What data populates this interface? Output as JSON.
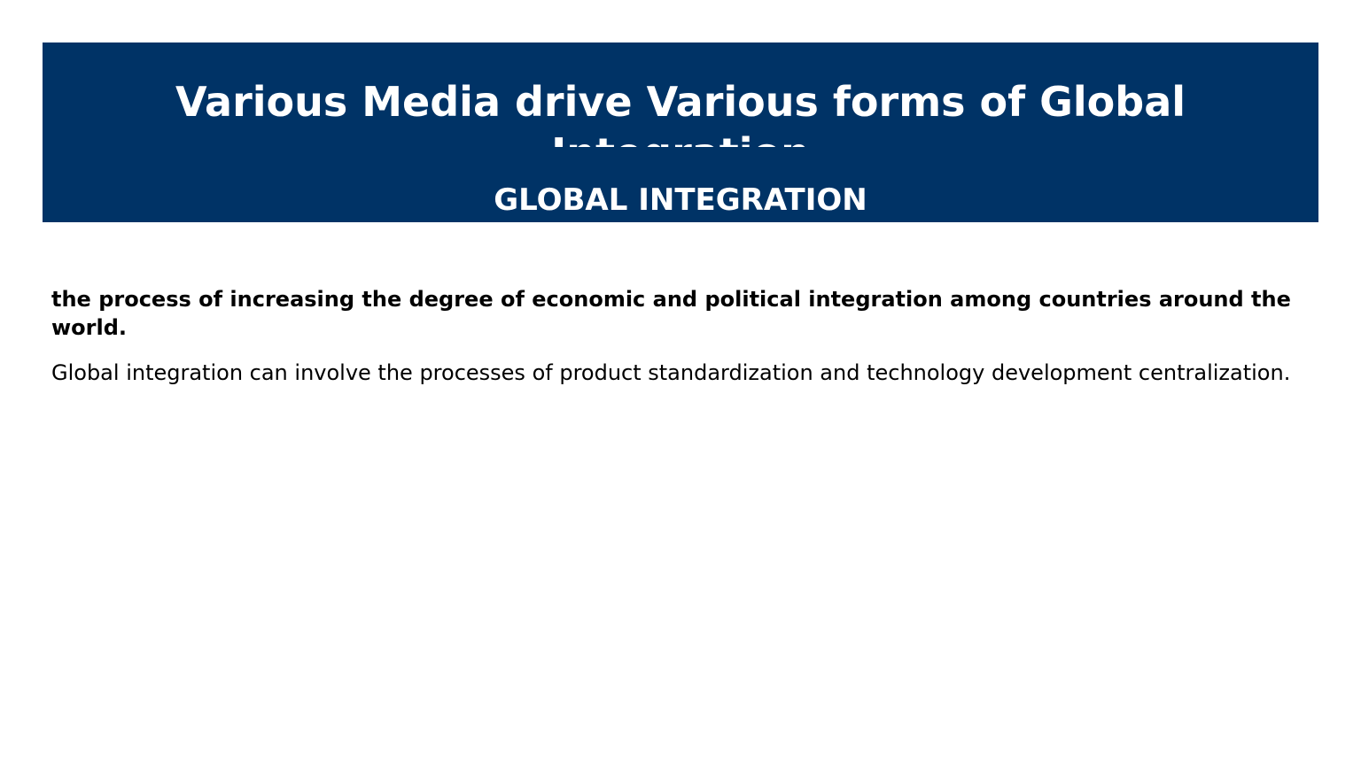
{
  "slide": {
    "title": "Various Media drive Various forms of Global Integration",
    "section_heading": "GLOBAL INTEGRATION",
    "definition": "the process of increasing the degree of economic and political integration among countries around the world.",
    "description": "Global integration can involve the processes of product standardization and technology development centralization."
  },
  "colors": {
    "header_background": "#003366",
    "header_text": "#ffffff",
    "body_text": "#000000"
  }
}
